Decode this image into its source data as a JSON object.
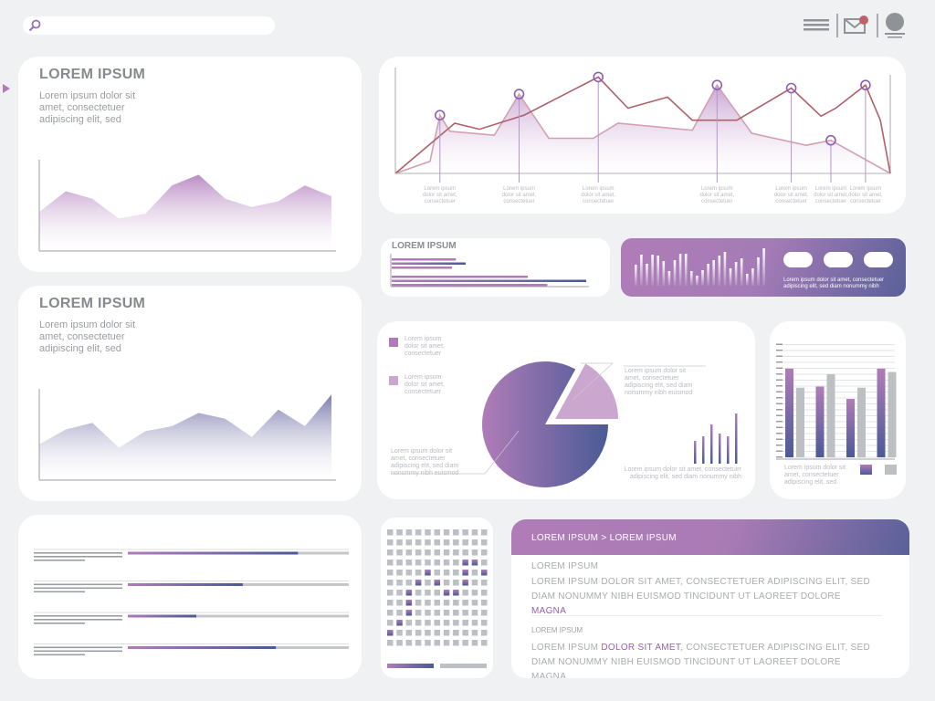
{
  "header": {
    "search_placeholder": "",
    "notification": true
  },
  "card_a": {
    "title": "LOREM IPSUM",
    "text": "Lorem ipsum dolor sit\namet, consectetuer\nadipiscing elit, sed"
  },
  "card_b": {
    "title": "LOREM IPSUM",
    "text": "Lorem ipsum dolor sit\namet, consectetuer\nadipiscing elit, sed"
  },
  "bar_card": {
    "title": "LOREM IPSUM"
  },
  "banner": {
    "text": "Lorem ipsum dolor sit amet, consectetuer\nadipiscing elit, sed diam nonummy nibh"
  },
  "pie_card": {
    "legend": [
      "Lorem ipsum\ndolor sit amet,\nconsectetuer",
      "Lorem ipsum\ndolor sit amet,\nconsectetuer"
    ],
    "callout_slice": "Lorem ipsum dolor sit\namet, consectetuer\nadipiscing elit, sed diam\nnonummy nibh euismod",
    "callout_main": "Lorem ipsum dolor sit\namet, consectetuer\nadipiscing elit, sed diam\nnonummy nibh euismod",
    "callout_bars": "Lorem ipsum dolor sit amet, consectetuer\nadipiscing elit, sed diam nonummy nibh"
  },
  "grouped_card": {
    "caption": "Lorem ipsum dolor sit\namet, consectetuer\nadipiscing elit, sed"
  },
  "text_card": {
    "breadcrumb": "LOREM IPSUM > LOREM IPSUM",
    "s1_title": "LOREM IPSUM",
    "s1_text": "LOREM IPSUM DOLOR SIT AMET, CONSECTETUER ADIPISCING ELIT, SED DIAM NONUMMY NIBH EUISMOD TINCIDUNT UT LAOREET DOLORE ",
    "s1_highlight": "MAGNA",
    "s2_title": "LOREM IPSUM",
    "s2_pre": "LOREM IPSUM ",
    "s2_highlight": "DOLOR SIT AMET",
    "s2_text": ", CONSECTETUER ADIPISCING ELIT, SED DIAM NONUMMY NIBH EUISMOD TINCIDUNT UT LAOREET DOLORE MAGNA"
  },
  "colors": {
    "purple": "#b07cb8",
    "navy": "#4a5a96",
    "gray": "#bcbfc3",
    "line_dark": "#b0606a",
    "line_light": "#d4a0b0",
    "marker": "#8a5fb8",
    "alert": "#c0606a"
  },
  "chart_data": [
    {
      "id": "area_a",
      "type": "area",
      "x": [
        0,
        1,
        2,
        3,
        4,
        5,
        6,
        7,
        8,
        9,
        10,
        11
      ],
      "values": [
        47,
        72,
        63,
        39,
        45,
        79,
        92,
        63,
        53,
        60,
        79,
        66
      ],
      "ylim": [
        0,
        110
      ]
    },
    {
      "id": "area_b",
      "type": "area",
      "x": [
        0,
        1,
        2,
        3,
        4,
        5,
        6,
        7,
        8,
        9,
        10,
        11
      ],
      "values": [
        43,
        61,
        69,
        39,
        59,
        65,
        81,
        74,
        52,
        85,
        65,
        103
      ],
      "ylim": [
        0,
        110
      ]
    },
    {
      "id": "line",
      "type": "line",
      "xlim": [
        0,
        100
      ],
      "ylim": [
        0,
        100
      ],
      "series": [
        {
          "name": "dark",
          "x": [
            0,
            12,
            17,
            26,
            41,
            47,
            55,
            60,
            69,
            80,
            86,
            89,
            95,
            98,
            100
          ],
          "y": [
            0,
            50,
            44,
            58,
            96,
            65,
            76,
            53,
            53,
            85,
            57,
            65,
            88,
            53,
            0
          ]
        },
        {
          "name": "light",
          "x": [
            0,
            7,
            9,
            11,
            20,
            25,
            31,
            40,
            45,
            60,
            65,
            72,
            83,
            88,
            100
          ],
          "y": [
            0,
            12,
            58,
            42,
            38,
            79,
            35,
            35,
            50,
            43,
            88,
            40,
            28,
            33,
            0
          ]
        }
      ],
      "markers": [
        {
          "x": 9,
          "y": 58
        },
        {
          "x": 25,
          "y": 79
        },
        {
          "x": 41,
          "y": 96
        },
        {
          "x": 65,
          "y": 88
        },
        {
          "x": 80,
          "y": 85
        },
        {
          "x": 88,
          "y": 33
        },
        {
          "x": 95,
          "y": 88
        }
      ],
      "marker_labels": [
        "Lorem ipsum\ndolor sit amet,\nconsectetuer",
        "Lorem ipsum\ndolor sit amet,\nconsectetuer",
        "Lorem ipsum\ndolor sit amet,\nconsectetuer",
        "Lorem ipsum\ndolor sit amet,\nconsectetuer",
        "Lorem ipsum\ndolor sit amet,\nconsectetuer",
        "Lorem ipsum\ndolor sit amet,\nconsectetuer",
        "Lorem ipsum\ndolor sit amet,\nconsectetuer"
      ]
    },
    {
      "id": "hbars",
      "type": "bar",
      "orientation": "horizontal",
      "groups": [
        [
          33,
          38,
          31
        ],
        [
          70,
          100,
          80
        ]
      ],
      "xlim": [
        0,
        100
      ]
    },
    {
      "id": "banner_bars",
      "type": "bar",
      "values": [
        23,
        34,
        24,
        34,
        33,
        27,
        16,
        28,
        35,
        35,
        16,
        11,
        17,
        24,
        28,
        33,
        37,
        19,
        26,
        30,
        13,
        19,
        31,
        41
      ],
      "ylim": [
        0,
        45
      ]
    },
    {
      "id": "pie",
      "type": "pie",
      "values": [
        83,
        17
      ],
      "exploded": [
        1
      ]
    },
    {
      "id": "mini_bars",
      "type": "bar",
      "values": [
        25,
        30,
        43,
        33,
        30,
        55
      ],
      "ylim": [
        0,
        60
      ]
    },
    {
      "id": "grouped",
      "type": "bar",
      "categories": [
        "1",
        "2",
        "3",
        "4"
      ],
      "series": [
        {
          "name": "purple",
          "values": [
            79,
            63,
            52,
            79
          ]
        },
        {
          "name": "gray",
          "values": [
            62,
            74,
            62,
            76
          ]
        }
      ],
      "ylim": [
        0,
        100
      ]
    },
    {
      "id": "progress",
      "type": "bar",
      "values": [
        0.77,
        0.52,
        0.31,
        0.67
      ]
    },
    {
      "id": "dot_grid",
      "type": "heatmap",
      "cols": 11,
      "rows": 12,
      "highlighted": [
        [
          3,
          8
        ],
        [
          3,
          9
        ],
        [
          4,
          4
        ],
        [
          4,
          8
        ],
        [
          4,
          10
        ],
        [
          5,
          3
        ],
        [
          5,
          5
        ],
        [
          5,
          8
        ],
        [
          6,
          2
        ],
        [
          6,
          6
        ],
        [
          6,
          7
        ],
        [
          7,
          2
        ],
        [
          8,
          2
        ],
        [
          9,
          1
        ],
        [
          10,
          0
        ]
      ]
    }
  ]
}
